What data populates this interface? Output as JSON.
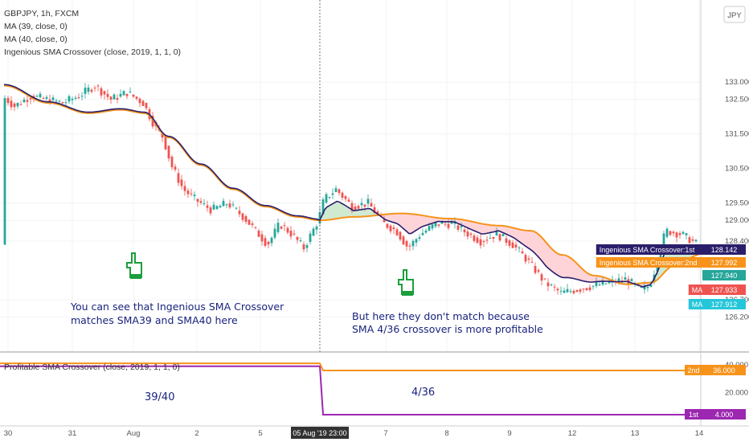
{
  "chart_data": {
    "type": "line",
    "title": "GBPJPY, 1h, FXCM",
    "currency_badge": "JPY",
    "indicators": [
      "MA (39, close, 0)",
      "MA (40, close, 0)",
      "Ingenious SMA Crossover (close, 2019, 1, 1, 0)"
    ],
    "lower_pane_title": "Profitable SMA Crossover (close, 2019, 1, 1, 0)",
    "y_ticks": [
      {
        "v": 133.0,
        "t": "133.000"
      },
      {
        "v": 132.5,
        "t": "132.500"
      },
      {
        "v": 131.5,
        "t": "131.500"
      },
      {
        "v": 130.5,
        "t": "130.500"
      },
      {
        "v": 129.5,
        "t": "129.500"
      },
      {
        "v": 129.0,
        "t": "129.000"
      },
      {
        "v": 128.4,
        "t": "128.400"
      },
      {
        "v": 126.7,
        "t": "126.700"
      },
      {
        "v": 126.2,
        "t": "126.200"
      }
    ],
    "lower_y_ticks": [
      {
        "v": 40,
        "t": "40.000"
      },
      {
        "v": 20,
        "t": "20.000"
      }
    ],
    "x_ticks": [
      "30",
      "31",
      "Aug",
      "2",
      "5",
      "7",
      "8",
      "9",
      "12",
      "13",
      "14"
    ],
    "crosshair_label": "05 Aug '19   23:00",
    "price_tags": [
      {
        "text": "Ingenious SMA Crossover:1st",
        "value": "128.142",
        "color": "#2a1e6b"
      },
      {
        "text": "Ingenious SMA Crossover:2nd",
        "value": "127.992",
        "color": "#f7931a"
      },
      {
        "text": "",
        "value": "127.940",
        "color": "#26a69a"
      },
      {
        "text": "MA",
        "value": "127.933",
        "color": "#ef5350"
      },
      {
        "text": "MA",
        "value": "127.912",
        "color": "#26c6da"
      }
    ],
    "lower_tags": [
      {
        "text": "2nd",
        "value": "36.000",
        "color": "#f7931a"
      },
      {
        "text": "1st",
        "value": "4.000",
        "color": "#9c27b0"
      }
    ],
    "annotations": {
      "left_line1": "You can see that Ingenious SMA Crossover",
      "left_line2": "matches SMA39 and SMA40 here",
      "right_line1": "But here they don't match because",
      "right_line2": "SMA 4/36 crossover is more profitable",
      "pane_left": "39/40",
      "pane_right": "4/36"
    },
    "lower_series": [
      {
        "name": "1st",
        "before": 39,
        "after": 4
      },
      {
        "name": "2nd",
        "before": 40,
        "after": 36
      }
    ],
    "colors": {
      "up": "#26a69a",
      "down": "#ef5350",
      "ma": "#f7931a",
      "ma_dark": "#2a1e6b",
      "fill_green": "#c8e6c9",
      "fill_red": "#ffcdd2",
      "lower_first": "#9c27b0",
      "lower_second": "#f7931a"
    }
  }
}
